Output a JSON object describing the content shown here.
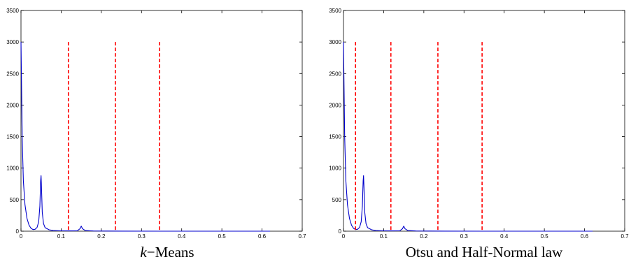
{
  "chart_data": [
    {
      "type": "line",
      "title": "",
      "caption": {
        "var": "k",
        "text": "−Means"
      },
      "xlabel": "",
      "ylabel": "",
      "xlim": [
        0,
        0.7
      ],
      "ylim": [
        0,
        3500
      ],
      "xticks": [
        "0",
        "0.1",
        "0.2",
        "0.3",
        "0.4",
        "0.5",
        "0.6",
        "0.7"
      ],
      "yticks": [
        "0",
        "500",
        "1000",
        "1500",
        "2000",
        "2500",
        "3000",
        "3500"
      ],
      "grid": false,
      "series": [
        {
          "style": "solid",
          "color": "#0000cc",
          "x": [
            0,
            0.003,
            0.006,
            0.01,
            0.015,
            0.02,
            0.025,
            0.03,
            0.035,
            0.04,
            0.044,
            0.047,
            0.049,
            0.05,
            0.051,
            0.053,
            0.056,
            0.06,
            0.07,
            0.08,
            0.1,
            0.12,
            0.14,
            0.147,
            0.15,
            0.153,
            0.16,
            0.18,
            0.25,
            0.35,
            0.5,
            0.62
          ],
          "y": [
            3000,
            1500,
            800,
            420,
            200,
            95,
            45,
            25,
            30,
            60,
            150,
            400,
            800,
            880,
            700,
            300,
            120,
            55,
            22,
            10,
            5,
            4,
            6,
            40,
            80,
            40,
            10,
            3,
            1,
            0,
            0,
            0
          ]
        }
      ],
      "thresholds": {
        "color": "#ff0000",
        "style": "dashed",
        "x": [
          0.118,
          0.235,
          0.345
        ],
        "ymax": 3000
      }
    },
    {
      "type": "line",
      "title": "",
      "caption": {
        "var": "",
        "text": "Otsu and Half-Normal law"
      },
      "xlabel": "",
      "ylabel": "",
      "xlim": [
        0,
        0.7
      ],
      "ylim": [
        0,
        3500
      ],
      "xticks": [
        "0",
        "0.1",
        "0.2",
        "0.3",
        "0.4",
        "0.5",
        "0.6",
        "0.7"
      ],
      "yticks": [
        "0",
        "500",
        "1000",
        "1500",
        "2000",
        "2500",
        "3000",
        "3500"
      ],
      "grid": false,
      "series": [
        {
          "style": "solid",
          "color": "#0000cc",
          "x": [
            0,
            0.003,
            0.006,
            0.01,
            0.015,
            0.02,
            0.025,
            0.03,
            0.035,
            0.04,
            0.044,
            0.047,
            0.049,
            0.05,
            0.051,
            0.053,
            0.056,
            0.06,
            0.07,
            0.08,
            0.1,
            0.12,
            0.14,
            0.147,
            0.15,
            0.153,
            0.16,
            0.18,
            0.25,
            0.35,
            0.5,
            0.62
          ],
          "y": [
            3000,
            1500,
            800,
            420,
            200,
            95,
            45,
            25,
            30,
            60,
            150,
            400,
            800,
            880,
            700,
            300,
            120,
            55,
            22,
            10,
            5,
            4,
            6,
            40,
            80,
            40,
            10,
            3,
            1,
            0,
            0,
            0
          ]
        }
      ],
      "thresholds": {
        "color": "#ff0000",
        "style": "dashed",
        "x": [
          0.03,
          0.118,
          0.235,
          0.345
        ],
        "ymax": 3000
      }
    }
  ]
}
